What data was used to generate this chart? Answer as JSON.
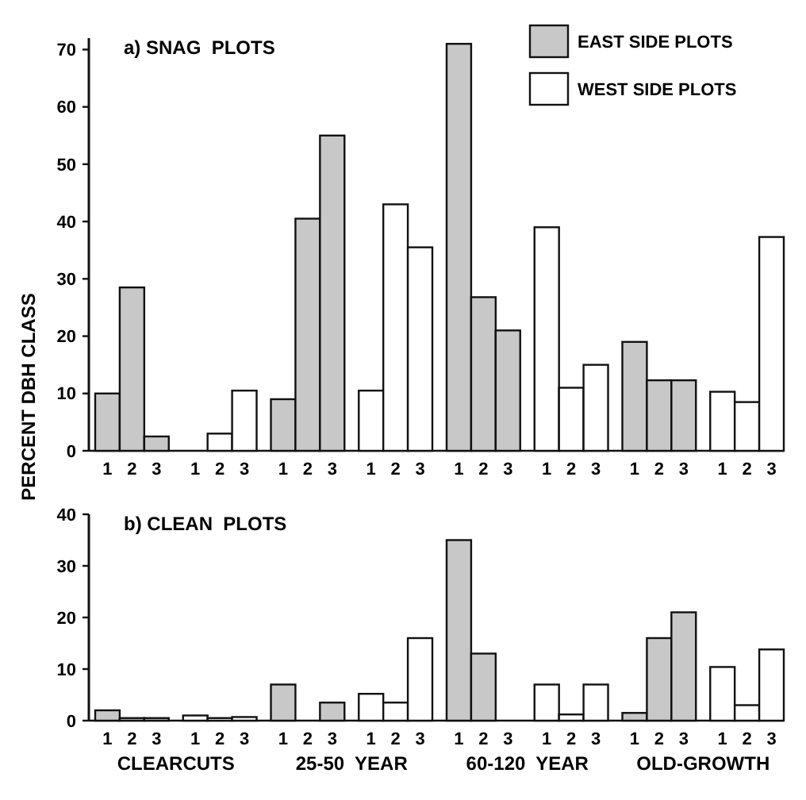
{
  "chart_data": [
    {
      "type": "bar",
      "title": "a) SNAG  PLOTS",
      "ylabel": "PERCENT DBH CLASS",
      "categories": [
        "1",
        "2",
        "3",
        "1",
        "2",
        "3",
        "1",
        "2",
        "3",
        "1",
        "2",
        "3",
        "1",
        "2",
        "3",
        "1",
        "2",
        "3",
        "1",
        "2",
        "3",
        "1",
        "2",
        "3"
      ],
      "series": [
        {
          "name": "EAST SIDE PLOTS",
          "color": "#c8c8c8",
          "values": [
            10,
            28.5,
            2.5,
            null,
            null,
            null,
            9,
            40.5,
            55,
            null,
            null,
            null,
            71,
            26.8,
            21,
            null,
            null,
            null,
            19,
            12.3,
            12.3,
            null,
            null,
            null
          ]
        },
        {
          "name": "WEST SIDE PLOTS",
          "color": "#ffffff",
          "values": [
            null,
            null,
            null,
            null,
            3,
            10.5,
            null,
            null,
            null,
            10.5,
            43,
            35.5,
            null,
            null,
            null,
            39,
            11,
            15,
            null,
            null,
            null,
            10.3,
            8.5,
            37.3
          ]
        }
      ],
      "ylim": [
        0,
        72
      ],
      "yticks": [
        0,
        10,
        20,
        30,
        40,
        50,
        60,
        70
      ],
      "legend": "top right",
      "grid": false
    },
    {
      "type": "bar",
      "title": "b) CLEAN  PLOTS",
      "categories": [
        "1",
        "2",
        "3",
        "1",
        "2",
        "3",
        "1",
        "2",
        "3",
        "1",
        "2",
        "3",
        "1",
        "2",
        "3",
        "1",
        "2",
        "3",
        "1",
        "2",
        "3",
        "1",
        "2",
        "3"
      ],
      "series": [
        {
          "color": "#c8c8c8",
          "values": [
            2,
            0.5,
            0.5,
            null,
            null,
            null,
            7,
            null,
            3.5,
            null,
            null,
            null,
            35,
            13,
            null,
            null,
            null,
            null,
            1.5,
            16,
            21,
            null,
            null,
            null
          ]
        },
        {
          "color": "#ffffff",
          "values": [
            null,
            null,
            null,
            1,
            0.5,
            0.7,
            null,
            null,
            null,
            5.2,
            3.5,
            16,
            null,
            null,
            null,
            7,
            1.2,
            7,
            null,
            null,
            null,
            10.4,
            3,
            13.8
          ]
        }
      ],
      "ylim": [
        0,
        40
      ],
      "yticks": [
        0,
        10,
        20,
        30,
        40
      ],
      "legend": false,
      "grid": false,
      "annotations": [
        "CLEARCUTS",
        "25-50  YEAR",
        "60-120  YEAR",
        "OLD-GROWTH"
      ]
    }
  ]
}
